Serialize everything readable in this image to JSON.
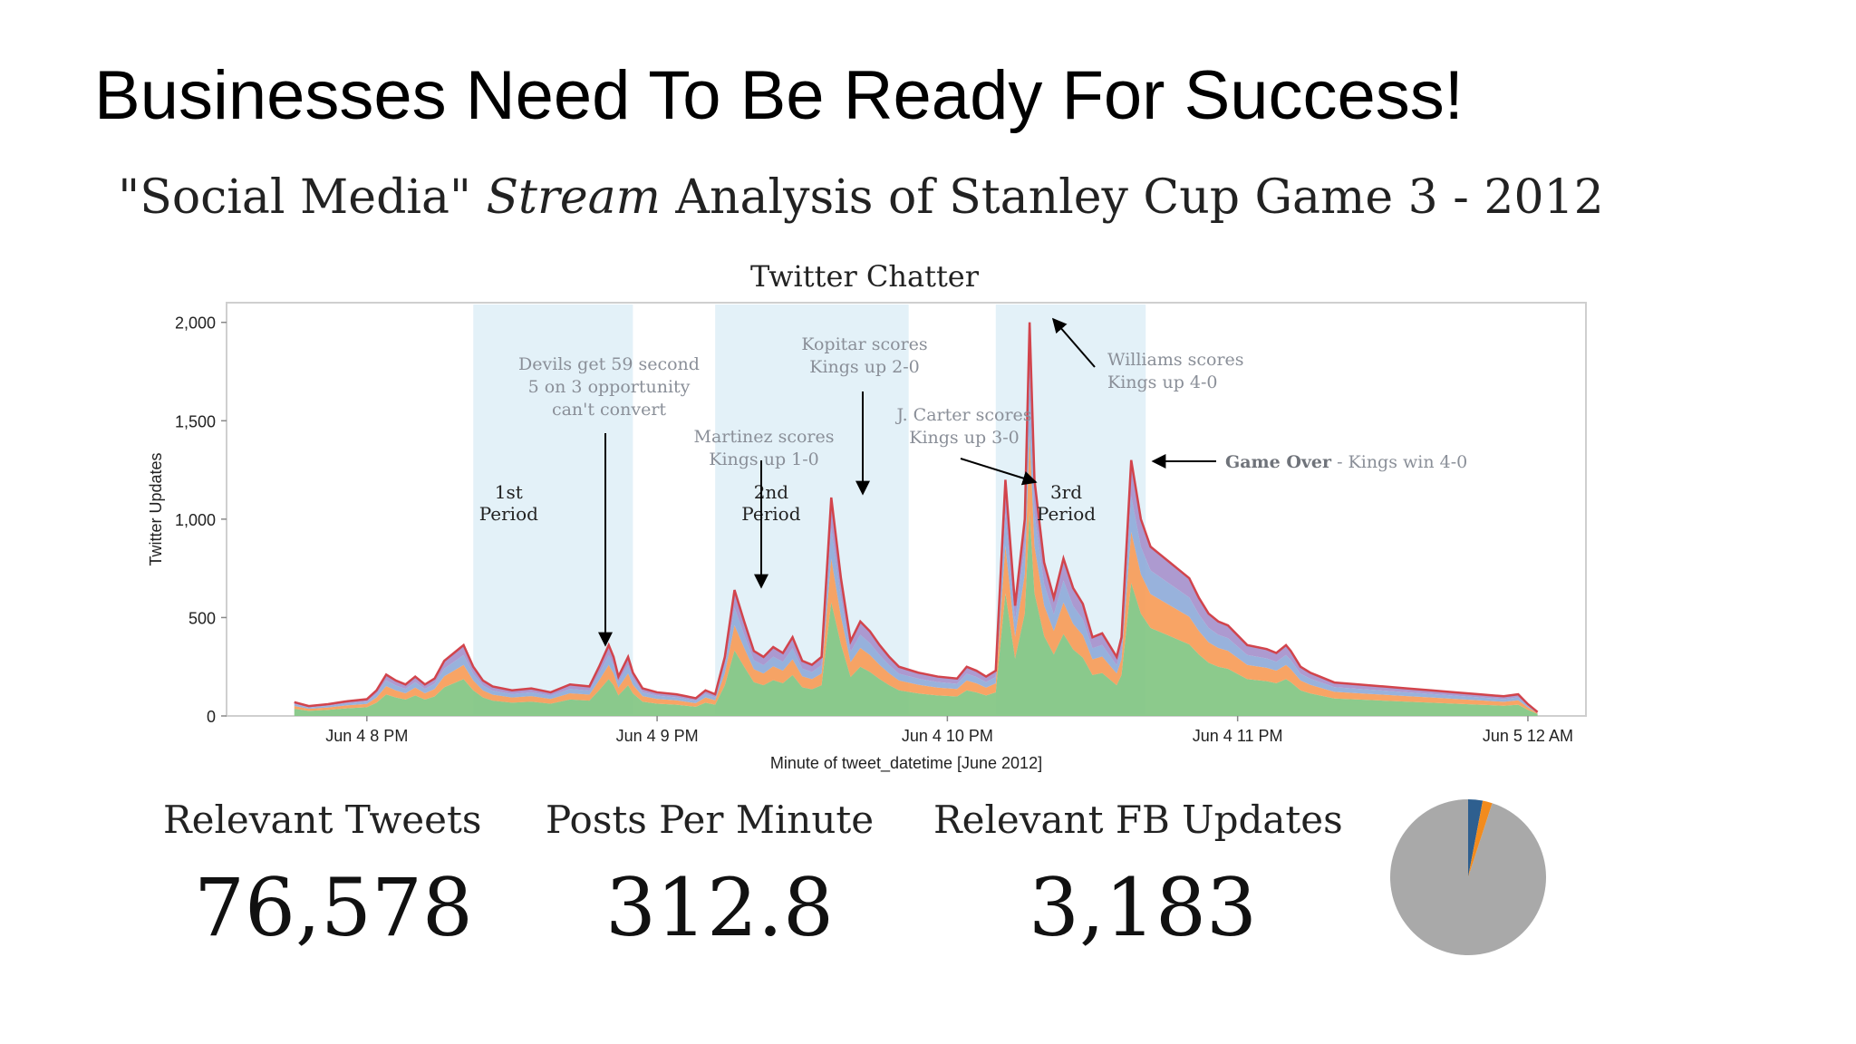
{
  "slide": {
    "title": "Businesses Need To Be Ready For Success!"
  },
  "heading": {
    "pre": "\"Social Media\" ",
    "italic": "Stream",
    "post": " Analysis of Stanley Cup Game 3 - 2012"
  },
  "chart_data": {
    "type": "area",
    "title": "Twitter Chatter",
    "xlabel": "Minute of tweet_datetime [June 2012]",
    "ylabel": "Twitter Updates",
    "x_ticks": [
      {
        "label": "Jun 4 8 PM",
        "minute": 0
      },
      {
        "label": "Jun 4 9 PM",
        "minute": 60
      },
      {
        "label": "Jun 4 10 PM",
        "minute": 120
      },
      {
        "label": "Jun 4 11 PM",
        "minute": 180
      },
      {
        "label": "Jun 5 12 AM",
        "minute": 240
      }
    ],
    "xlim_minutes": [
      -29,
      252
    ],
    "ylim": [
      0,
      2100
    ],
    "y_ticks": [
      {
        "label": "0",
        "value": 0
      },
      {
        "label": "500",
        "value": 500
      },
      {
        "label": "1,000",
        "value": 1000
      },
      {
        "label": "1,500",
        "value": 1500
      },
      {
        "label": "2,000",
        "value": 2000
      }
    ],
    "periods": [
      {
        "label": [
          "1st",
          "Period"
        ],
        "start": 22,
        "end": 55
      },
      {
        "label": [
          "2nd",
          "Period"
        ],
        "start": 72,
        "end": 112
      },
      {
        "label": [
          "3rd",
          "Period"
        ],
        "start": 130,
        "end": 161
      }
    ],
    "total_curve": [
      [
        -15,
        70
      ],
      [
        -12,
        50
      ],
      [
        -8,
        60
      ],
      [
        -4,
        75
      ],
      [
        0,
        85
      ],
      [
        2,
        130
      ],
      [
        4,
        210
      ],
      [
        6,
        180
      ],
      [
        8,
        160
      ],
      [
        10,
        200
      ],
      [
        12,
        160
      ],
      [
        14,
        190
      ],
      [
        16,
        280
      ],
      [
        18,
        320
      ],
      [
        20,
        360
      ],
      [
        22,
        250
      ],
      [
        24,
        180
      ],
      [
        26,
        150
      ],
      [
        30,
        130
      ],
      [
        34,
        140
      ],
      [
        38,
        120
      ],
      [
        42,
        160
      ],
      [
        46,
        150
      ],
      [
        48,
        250
      ],
      [
        50,
        360
      ],
      [
        51,
        300
      ],
      [
        52,
        200
      ],
      [
        54,
        300
      ],
      [
        55,
        220
      ],
      [
        57,
        140
      ],
      [
        60,
        120
      ],
      [
        64,
        110
      ],
      [
        66,
        100
      ],
      [
        68,
        90
      ],
      [
        70,
        130
      ],
      [
        72,
        110
      ],
      [
        74,
        300
      ],
      [
        76,
        640
      ],
      [
        78,
        480
      ],
      [
        80,
        330
      ],
      [
        82,
        300
      ],
      [
        84,
        350
      ],
      [
        86,
        320
      ],
      [
        88,
        400
      ],
      [
        90,
        280
      ],
      [
        92,
        260
      ],
      [
        94,
        300
      ],
      [
        96,
        1110
      ],
      [
        98,
        700
      ],
      [
        100,
        380
      ],
      [
        102,
        480
      ],
      [
        104,
        430
      ],
      [
        106,
        360
      ],
      [
        108,
        300
      ],
      [
        110,
        250
      ],
      [
        114,
        220
      ],
      [
        118,
        200
      ],
      [
        122,
        190
      ],
      [
        124,
        250
      ],
      [
        126,
        230
      ],
      [
        128,
        200
      ],
      [
        130,
        230
      ],
      [
        132,
        1200
      ],
      [
        134,
        560
      ],
      [
        136,
        1000
      ],
      [
        137,
        2000
      ],
      [
        138,
        1200
      ],
      [
        140,
        780
      ],
      [
        142,
        600
      ],
      [
        144,
        800
      ],
      [
        146,
        650
      ],
      [
        148,
        570
      ],
      [
        150,
        400
      ],
      [
        152,
        420
      ],
      [
        155,
        300
      ],
      [
        156,
        400
      ],
      [
        158,
        1300
      ],
      [
        160,
        1000
      ],
      [
        162,
        860
      ],
      [
        164,
        820
      ],
      [
        166,
        780
      ],
      [
        168,
        740
      ],
      [
        170,
        700
      ],
      [
        172,
        600
      ],
      [
        174,
        520
      ],
      [
        176,
        480
      ],
      [
        178,
        460
      ],
      [
        182,
        360
      ],
      [
        186,
        340
      ],
      [
        188,
        320
      ],
      [
        190,
        360
      ],
      [
        191,
        330
      ],
      [
        193,
        250
      ],
      [
        195,
        220
      ],
      [
        197,
        200
      ],
      [
        200,
        170
      ],
      [
        205,
        160
      ],
      [
        210,
        150
      ],
      [
        215,
        140
      ],
      [
        220,
        130
      ],
      [
        225,
        120
      ],
      [
        230,
        110
      ],
      [
        235,
        100
      ],
      [
        238,
        110
      ],
      [
        240,
        60
      ],
      [
        242,
        20
      ]
    ],
    "series": [
      {
        "name": "green",
        "share": 0.52
      },
      {
        "name": "orange",
        "share": 0.2
      },
      {
        "name": "blue",
        "share": 0.14
      },
      {
        "name": "purple",
        "share": 0.14
      }
    ],
    "annotations": [
      {
        "lines": [
          "Devils get 59 second",
          "5 on 3 opportunity",
          "can't convert"
        ],
        "minute": 49,
        "value": 320
      },
      {
        "lines": [
          "Martinez scores",
          "Kings up 1-0"
        ],
        "minute": 76,
        "value": 640
      },
      {
        "lines": [
          "Kopitar scores",
          "Kings up 2-0"
        ],
        "minute": 96,
        "value": 1110
      },
      {
        "lines": [
          "J. Carter scores",
          "Kings up 3-0"
        ],
        "minute": 131,
        "value": 1180
      },
      {
        "lines": [
          "Williams scores",
          "Kings up 4-0"
        ],
        "minute": 137,
        "value": 2050
      }
    ],
    "final_annotation": {
      "bold": "Game Over",
      "rest": " - Kings win 4-0",
      "minute": 158,
      "value": 1300
    }
  },
  "stats": [
    {
      "label": "Relevant Tweets",
      "value": "76,578"
    },
    {
      "label": "Posts Per Minute",
      "value": "312.8"
    },
    {
      "label": "Relevant FB Updates",
      "value": "3,183"
    }
  ],
  "pie": {
    "slices": [
      {
        "name": "gray",
        "share": 0.95
      },
      {
        "name": "blue",
        "share": 0.03
      },
      {
        "name": "orange",
        "share": 0.02
      }
    ]
  },
  "colors": {
    "period_shade": "#e3f1f8",
    "green": "#80c47f",
    "orange": "#f79a54",
    "blue": "#8daad8",
    "purple": "#a48fcb",
    "top_line": "#d2444c",
    "pie_gray": "#a9a9a9",
    "pie_blue": "#2e5f8f",
    "pie_orange": "#f28b1d"
  }
}
